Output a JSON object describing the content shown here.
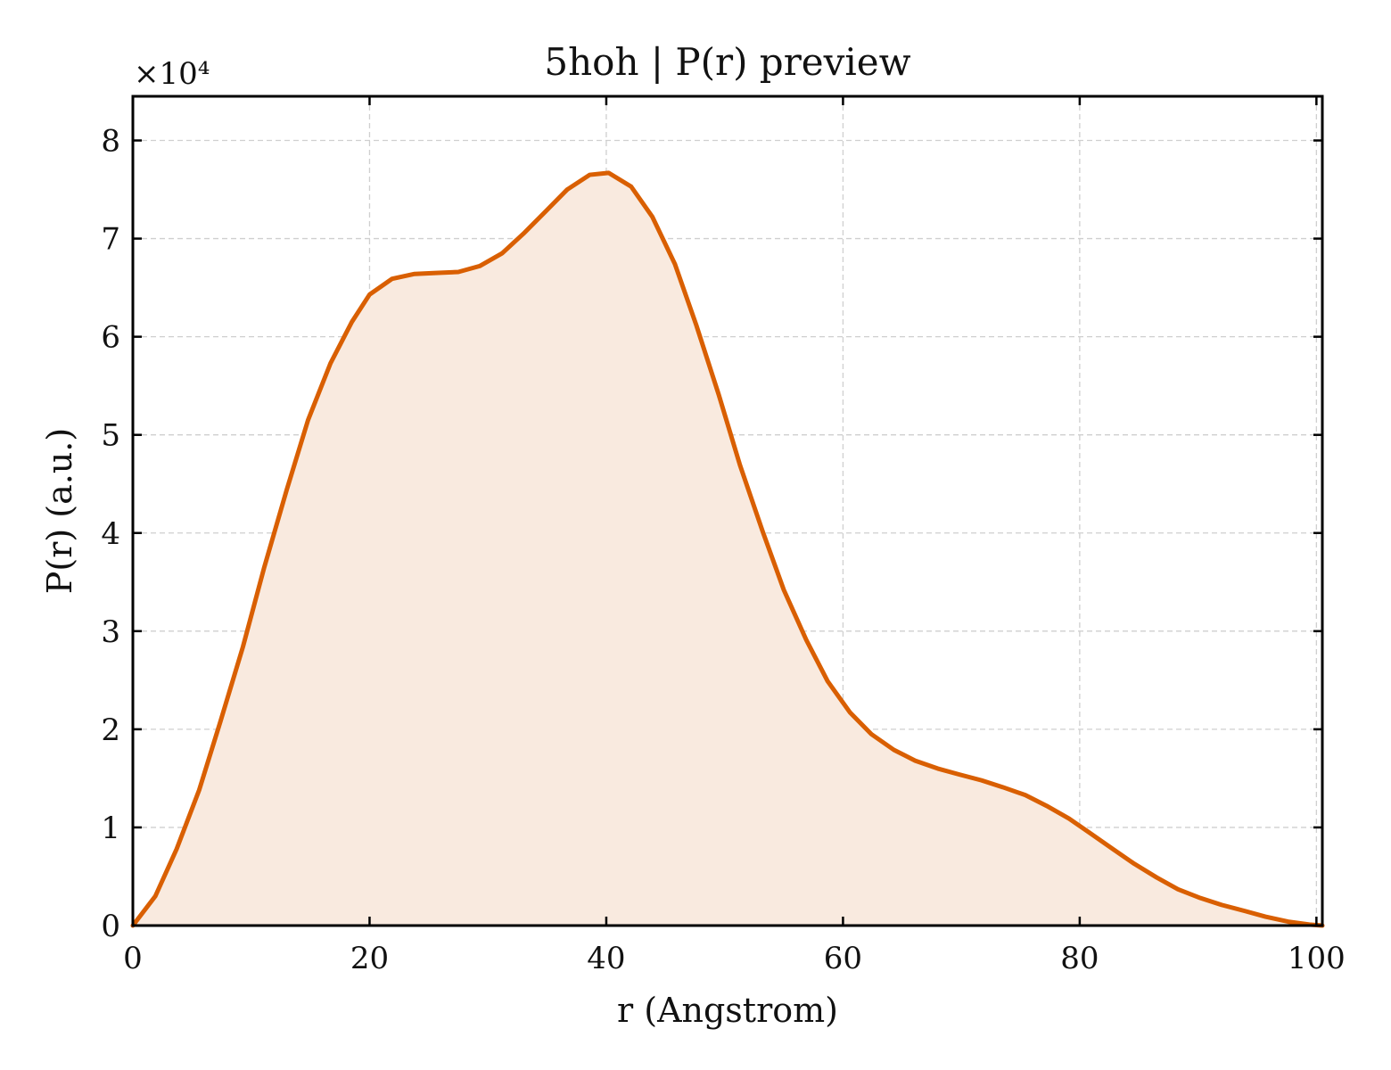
{
  "chart_data": {
    "type": "area",
    "title": "5hoh | P(r) preview",
    "xlabel": "r (Angstrom)",
    "ylabel": "P(r) (a.u.)",
    "y_multiplier_label": "×10⁴",
    "y_scale_factor": 10000,
    "xlim": [
      0,
      100.5
    ],
    "ylim": [
      0,
      84500
    ],
    "x_ticks": [
      0,
      20,
      40,
      60,
      80,
      100
    ],
    "y_ticks": [
      0,
      1,
      2,
      3,
      4,
      5,
      6,
      7,
      8
    ],
    "grid": true,
    "line_color": "#d95f02",
    "fill_color": "#f9eadf",
    "series": [
      {
        "x": [
          0,
          1.9,
          3.7,
          5.6,
          7.4,
          9.3,
          11.1,
          13.0,
          14.8,
          16.7,
          18.5,
          20.0,
          21.9,
          23.8,
          25.6,
          27.5,
          29.3,
          31.2,
          33.0,
          34.9,
          36.7,
          38.6,
          40.2,
          42.1,
          43.9,
          45.8,
          47.6,
          49.5,
          51.3,
          53.2,
          55.0,
          56.9,
          58.7,
          60.6,
          62.4,
          64.3,
          66.1,
          68.0,
          69.8,
          71.7,
          73.5,
          75.4,
          77.2,
          79.1,
          80.9,
          82.8,
          84.6,
          86.5,
          88.3,
          90.2,
          92.0,
          93.9,
          95.7,
          97.6,
          99.4,
          100.5
        ],
        "y": [
          0,
          3000,
          7800,
          13800,
          20800,
          28400,
          36500,
          44400,
          51500,
          57300,
          61500,
          64300,
          65900,
          66400,
          66500,
          66600,
          67200,
          68500,
          70500,
          72800,
          75000,
          76500,
          76700,
          75300,
          72200,
          67400,
          61200,
          54100,
          46900,
          40200,
          34200,
          29100,
          24900,
          21700,
          19500,
          17900,
          16800,
          16000,
          15400,
          14800,
          14100,
          13300,
          12200,
          10900,
          9400,
          7800,
          6300,
          4900,
          3700,
          2800,
          2100,
          1500,
          900,
          400,
          100,
          0
        ]
      }
    ]
  }
}
